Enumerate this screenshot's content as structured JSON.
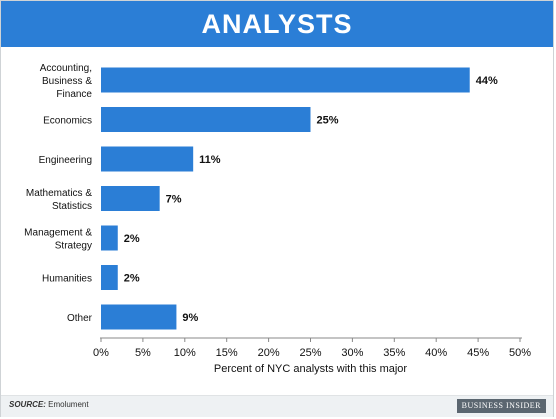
{
  "header": {
    "title": "ANALYSTS"
  },
  "chart_data": {
    "type": "bar",
    "orientation": "horizontal",
    "categories": [
      "Accounting, Business & Finance",
      "Economics",
      "Engineering",
      "Mathematics & Statistics",
      "Management & Strategy",
      "Humanities",
      "Other"
    ],
    "category_lines": [
      [
        "Accounting,",
        "Business &",
        "Finance"
      ],
      [
        "Economics"
      ],
      [
        "Engineering"
      ],
      [
        "Mathematics &",
        "Statistics"
      ],
      [
        "Management &",
        "Strategy"
      ],
      [
        "Humanities"
      ],
      [
        "Other"
      ]
    ],
    "values": [
      44,
      25,
      11,
      7,
      2,
      2,
      9
    ],
    "data_labels": [
      "44%",
      "25%",
      "11%",
      "7%",
      "2%",
      "2%",
      "9%"
    ],
    "xlabel": "Percent of NYC analysts with this major",
    "ylabel": "",
    "xlim": [
      0,
      50
    ],
    "xticks": [
      0,
      5,
      10,
      15,
      20,
      25,
      30,
      35,
      40,
      45,
      50
    ],
    "xtick_labels": [
      "0%",
      "5%",
      "10%",
      "15%",
      "20%",
      "25%",
      "30%",
      "35%",
      "40%",
      "45%",
      "50%"
    ],
    "bar_color": "#2b7ed6",
    "grid": false
  },
  "footer": {
    "source_label": "SOURCE:",
    "source_text": "Emolument",
    "brand": "BUSINESS INSIDER"
  },
  "colors": {
    "banner": "#2b7ed6",
    "bar": "#2b7ed6",
    "text": "#111111",
    "axis": "#888888"
  }
}
